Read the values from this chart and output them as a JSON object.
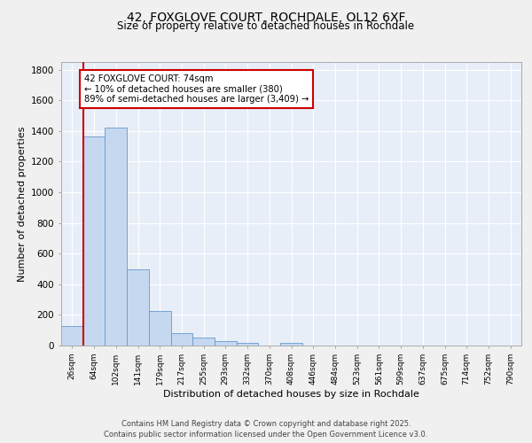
{
  "title_line1": "42, FOXGLOVE COURT, ROCHDALE, OL12 6XF",
  "title_line2": "Size of property relative to detached houses in Rochdale",
  "xlabel": "Distribution of detached houses by size in Rochdale",
  "ylabel": "Number of detached properties",
  "categories": [
    "26sqm",
    "64sqm",
    "102sqm",
    "141sqm",
    "179sqm",
    "217sqm",
    "255sqm",
    "293sqm",
    "332sqm",
    "370sqm",
    "408sqm",
    "446sqm",
    "484sqm",
    "523sqm",
    "561sqm",
    "599sqm",
    "637sqm",
    "675sqm",
    "714sqm",
    "752sqm",
    "790sqm"
  ],
  "values": [
    130,
    1365,
    1420,
    500,
    225,
    80,
    50,
    30,
    20,
    0,
    20,
    0,
    0,
    0,
    0,
    0,
    0,
    0,
    0,
    0,
    0
  ],
  "bar_color": "#c5d8f0",
  "bar_edge_color": "#6699cc",
  "vline_color": "#cc0000",
  "annotation_text": "42 FOXGLOVE COURT: 74sqm\n← 10% of detached houses are smaller (380)\n89% of semi-detached houses are larger (3,409) →",
  "annotation_box_color": "#ffffff",
  "annotation_box_edge": "#cc0000",
  "ylim": [
    0,
    1850
  ],
  "yticks": [
    0,
    200,
    400,
    600,
    800,
    1000,
    1200,
    1400,
    1600,
    1800
  ],
  "background_color": "#e8eef8",
  "grid_color": "#ffffff",
  "fig_color": "#f0f0f0",
  "footer_line1": "Contains HM Land Registry data © Crown copyright and database right 2025.",
  "footer_line2": "Contains public sector information licensed under the Open Government Licence v3.0."
}
